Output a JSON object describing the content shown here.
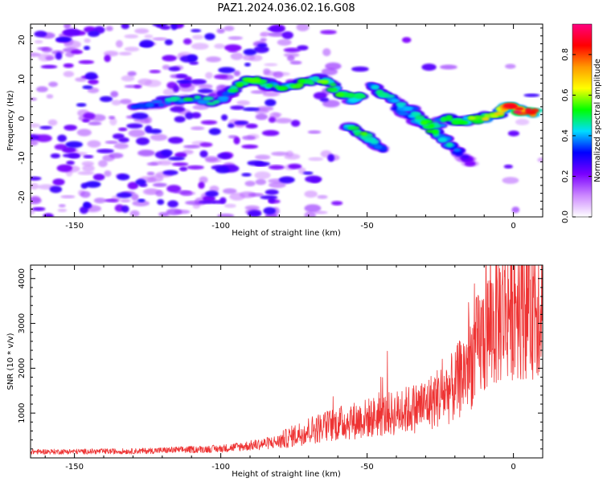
{
  "title": "PAZ1.2024.036.02.16.G08",
  "chart_data": [
    {
      "type": "heatmap",
      "xlabel": "Height of straight line (km)",
      "ylabel": "Frequency (Hz)",
      "xlim": [
        -165,
        10
      ],
      "ylim": [
        -25,
        24
      ],
      "x_ticks": [
        -150,
        -100,
        -50,
        0
      ],
      "y_ticks": [
        20,
        10,
        0,
        -10,
        -20
      ],
      "colorbar": {
        "label": "Normalized spectral amplitude",
        "range": [
          0,
          0.95
        ],
        "ticks": [
          0.0,
          0.2,
          0.4,
          0.6,
          0.8
        ],
        "colors": [
          "#ffffff",
          "#cc88ff",
          "#7a00ff",
          "#0000ff",
          "#00ddff",
          "#00ff00",
          "#ffff00",
          "#ff9900",
          "#ff0000",
          "#ff0080"
        ]
      },
      "ridges": [
        {
          "points": [
            [
              -130,
              2.5
            ],
            [
              -120,
              4
            ],
            [
              -110,
              5
            ],
            [
              -100,
              4
            ],
            [
              -95,
              8
            ],
            [
              -90,
              10
            ],
            [
              -85,
              9
            ],
            [
              -80,
              8
            ],
            [
              -72,
              9
            ],
            [
              -65,
              10
            ],
            [
              -60,
              7
            ],
            [
              -55,
              5
            ],
            [
              -52,
              6
            ]
          ],
          "strength": [
            0.35,
            0.45,
            0.5,
            0.45,
            0.5,
            0.55,
            0.5,
            0.5,
            0.55,
            0.6,
            0.55,
            0.5,
            0.5
          ]
        },
        {
          "points": [
            [
              -57,
              -2
            ],
            [
              -52,
              -4
            ],
            [
              -48,
              -6
            ],
            [
              -44,
              -8
            ]
          ],
          "strength": [
            0.45,
            0.55,
            0.45,
            0.35
          ]
        },
        {
          "points": [
            [
              -49,
              9
            ],
            [
              -45,
              6
            ],
            [
              -40,
              4
            ],
            [
              -34,
              2
            ],
            [
              -30,
              -1
            ],
            [
              -26,
              -4
            ],
            [
              -22,
              -6
            ],
            [
              -18,
              -9
            ],
            [
              -14,
              -12
            ]
          ],
          "strength": [
            0.4,
            0.5,
            0.45,
            0.5,
            0.55,
            0.5,
            0.45,
            0.3,
            0.2
          ]
        },
        {
          "points": [
            [
              -40,
              3
            ],
            [
              -34,
              0
            ],
            [
              -28,
              -2
            ],
            [
              -22,
              0
            ],
            [
              -18,
              -1
            ],
            [
              -12,
              0
            ],
            [
              -6,
              1
            ],
            [
              -2,
              3
            ],
            [
              2,
              2
            ],
            [
              8,
              1.5
            ]
          ],
          "strength": [
            0.35,
            0.4,
            0.45,
            0.5,
            0.55,
            0.62,
            0.7,
            0.85,
            0.9,
            0.88
          ]
        }
      ]
    },
    {
      "type": "line",
      "xlabel": "Height of straight line (km)",
      "ylabel": "SNR (10 * v/v)",
      "xlim": [
        -165,
        10
      ],
      "ylim": [
        0,
        4300
      ],
      "x_ticks": [
        -150,
        -100,
        -50,
        0
      ],
      "y_ticks": [
        1000,
        2000,
        3000,
        4000
      ],
      "series": [
        {
          "color": "#ee3333",
          "trend": [
            [
              -165,
              120
            ],
            [
              -130,
              130
            ],
            [
              -100,
              180
            ],
            [
              -90,
              240
            ],
            [
              -80,
              320
            ],
            [
              -70,
              520
            ],
            [
              -60,
              650
            ],
            [
              -50,
              750
            ],
            [
              -40,
              850
            ],
            [
              -30,
              1000
            ],
            [
              -20,
              1350
            ],
            [
              -15,
              1800
            ],
            [
              -10,
              2300
            ],
            [
              -5,
              2700
            ],
            [
              0,
              3000
            ],
            [
              10,
              3000
            ]
          ]
        }
      ]
    }
  ]
}
